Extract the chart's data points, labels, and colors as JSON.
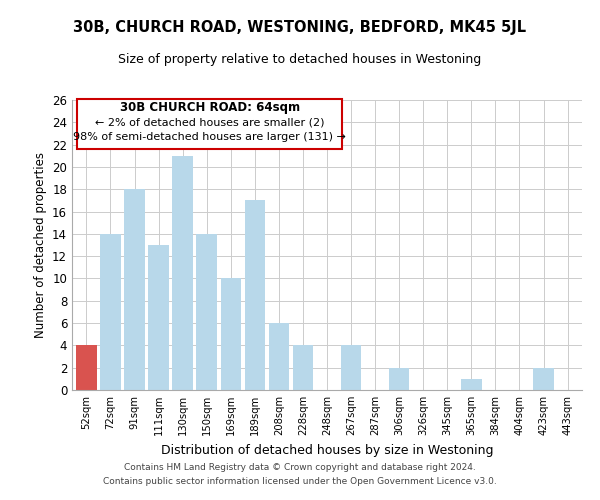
{
  "title": "30B, CHURCH ROAD, WESTONING, BEDFORD, MK45 5JL",
  "subtitle": "Size of property relative to detached houses in Westoning",
  "xlabel": "Distribution of detached houses by size in Westoning",
  "ylabel": "Number of detached properties",
  "categories": [
    "52sqm",
    "72sqm",
    "91sqm",
    "111sqm",
    "130sqm",
    "150sqm",
    "169sqm",
    "189sqm",
    "208sqm",
    "228sqm",
    "248sqm",
    "267sqm",
    "287sqm",
    "306sqm",
    "326sqm",
    "345sqm",
    "365sqm",
    "384sqm",
    "404sqm",
    "423sqm",
    "443sqm"
  ],
  "values": [
    4,
    14,
    18,
    13,
    21,
    14,
    10,
    17,
    6,
    4,
    0,
    4,
    0,
    2,
    0,
    0,
    1,
    0,
    0,
    2,
    0
  ],
  "bar_color_normal": "#b8d8ea",
  "bar_color_highlight": "#d9534f",
  "highlight_index": 0,
  "ylim": [
    0,
    26
  ],
  "yticks": [
    0,
    2,
    4,
    6,
    8,
    10,
    12,
    14,
    16,
    18,
    20,
    22,
    24,
    26
  ],
  "annotation_title": "30B CHURCH ROAD: 64sqm",
  "annotation_line1": "← 2% of detached houses are smaller (2)",
  "annotation_line2": "98% of semi-detached houses are larger (131) →",
  "annotation_box_color": "#ffffff",
  "annotation_box_edge": "#cc0000",
  "footer1": "Contains HM Land Registry data © Crown copyright and database right 2024.",
  "footer2": "Contains public sector information licensed under the Open Government Licence v3.0.",
  "background_color": "#ffffff",
  "grid_color": "#cccccc"
}
